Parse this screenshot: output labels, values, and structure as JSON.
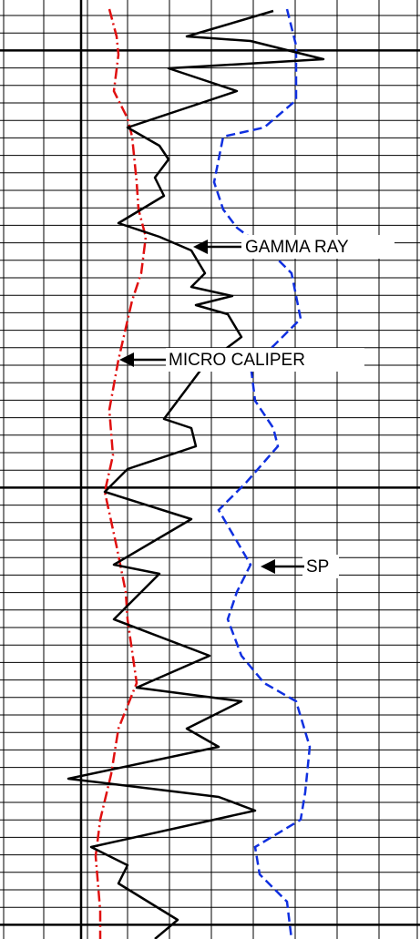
{
  "labels": [
    {
      "text": "GAMMA RAY"
    },
    {
      "text": "MICRO CALIPER"
    },
    {
      "text": "SP"
    }
  ]
}
